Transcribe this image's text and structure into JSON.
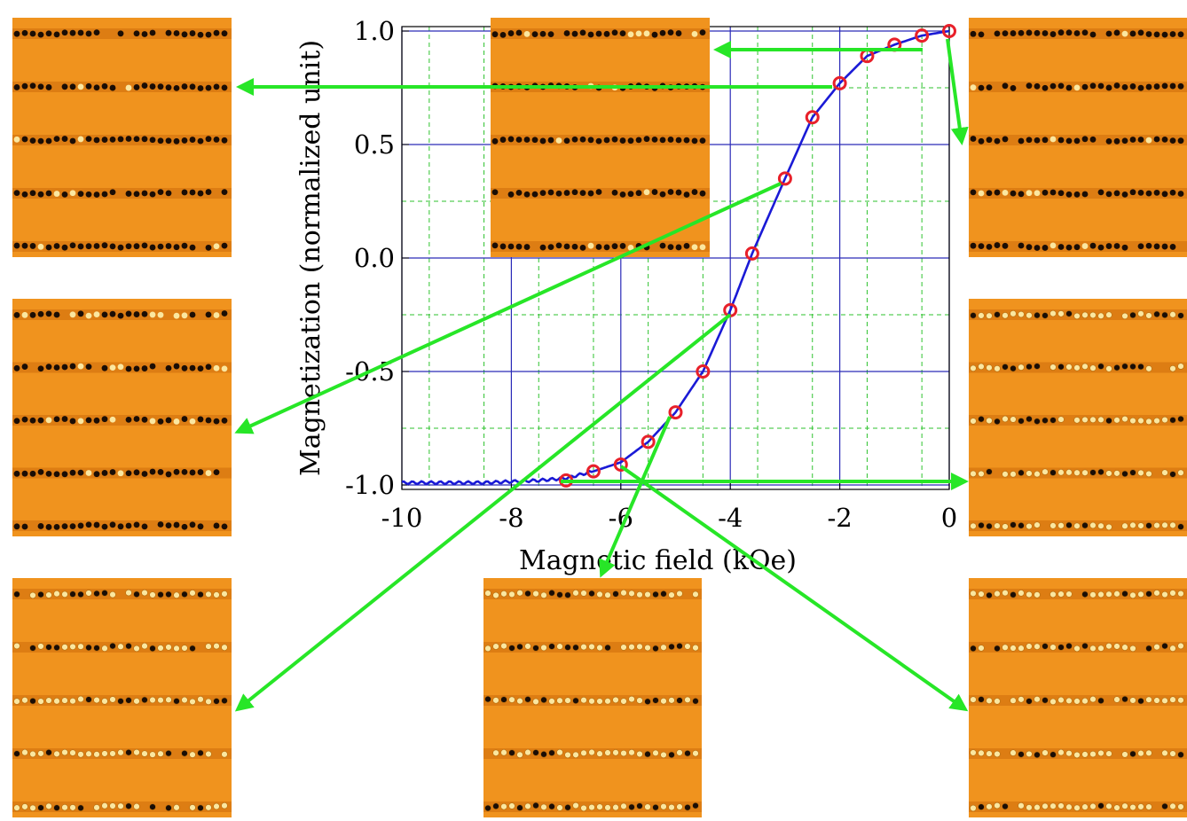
{
  "chart_data": {
    "type": "line",
    "xlabel": "Magnetic field (kOe)",
    "ylabel": "Magnetization (normalized unit)",
    "xlim": [
      -10,
      0
    ],
    "ylim": [
      -1.0,
      1.0
    ],
    "x_ticks": [
      -10,
      -8,
      -6,
      -4,
      -2,
      0
    ],
    "y_ticks": [
      -1.0,
      -0.5,
      0.0,
      0.5,
      1.0
    ],
    "x_tick_labels": [
      "-10",
      "-8",
      "-6",
      "-4",
      "-2",
      "0"
    ],
    "y_tick_labels": [
      "-1.0",
      "-0.5",
      "0.0",
      "0.5",
      "1.0"
    ],
    "grid": true,
    "series": [
      {
        "style": "line",
        "color": "#1a1ad6",
        "x": [
          -10,
          -9.5,
          -9,
          -8.5,
          -8,
          -7.5,
          -7,
          -6.5,
          -6,
          -5.5,
          -5,
          -4.5,
          -4,
          -3.6,
          -3,
          -2.5,
          -2,
          -1.5,
          -1,
          -0.5,
          0
        ],
        "y": [
          -0.99,
          -0.99,
          -0.99,
          -0.99,
          -0.985,
          -0.98,
          -0.97,
          -0.94,
          -0.9,
          -0.81,
          -0.68,
          -0.5,
          -0.23,
          0.02,
          0.35,
          0.62,
          0.77,
          0.89,
          0.94,
          0.98,
          1.0
        ]
      },
      {
        "style": "markers",
        "color": "#e8202a",
        "x": [
          -7,
          -6.5,
          -6,
          -5.5,
          -5,
          -4.5,
          -4,
          -3.6,
          -3,
          -2.5,
          -2,
          -1.5,
          -1,
          -0.5,
          0
        ],
        "y": [
          -0.98,
          -0.94,
          -0.91,
          -0.81,
          -0.68,
          -0.5,
          -0.23,
          0.02,
          0.35,
          0.62,
          0.77,
          0.89,
          0.94,
          0.98,
          1.0
        ]
      }
    ]
  },
  "annotations": {
    "arrow_color": "#27e627",
    "panel_colors": {
      "background": "#f0931e",
      "stripe": "#d4730e",
      "dark_dot": "#1a0d05",
      "light_dot": "#fbe7a0"
    }
  }
}
